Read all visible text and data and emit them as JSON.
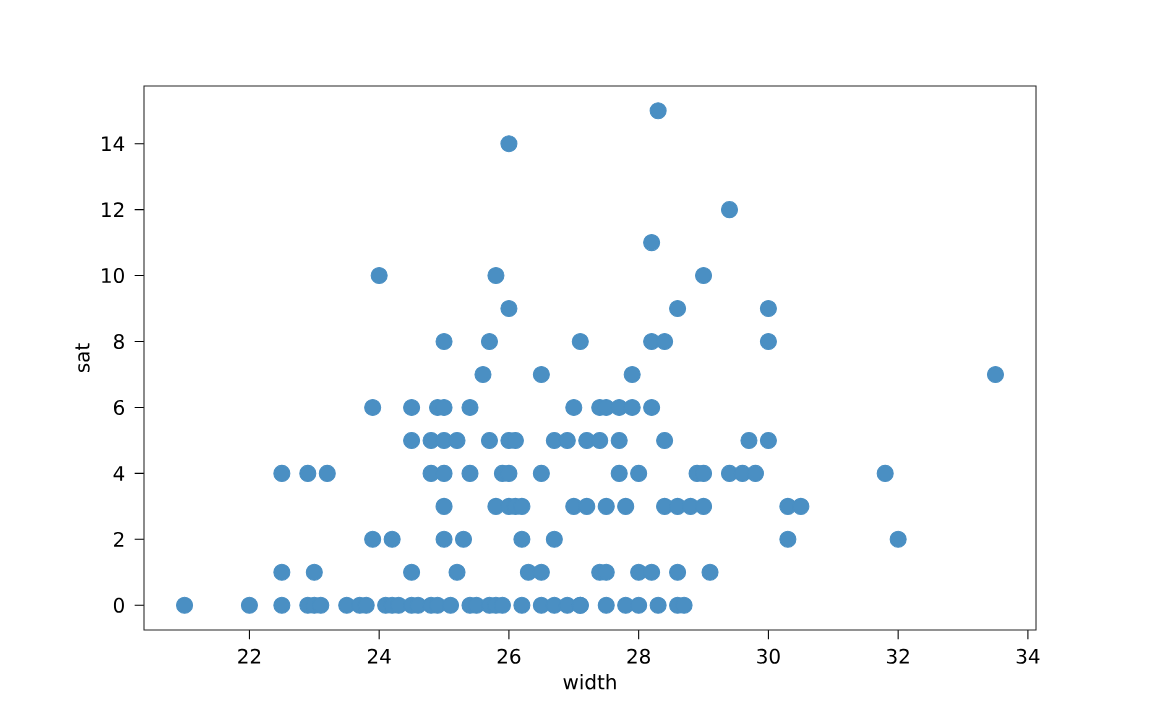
{
  "chart_data": {
    "type": "scatter",
    "xlabel": "width",
    "ylabel": "sat",
    "grid": false,
    "xlim": [
      20.375,
      34.125
    ],
    "ylim": [
      -0.75,
      15.75
    ],
    "xticks": [
      22,
      24,
      26,
      28,
      30,
      32,
      34
    ],
    "yticks": [
      0,
      2,
      4,
      6,
      8,
      10,
      12,
      14
    ],
    "series": [
      {
        "color": "#4a8fc3",
        "x": [
          21.0,
          22.0,
          22.5,
          22.9,
          23.0,
          23.1,
          23.5,
          23.7,
          23.8,
          24.1,
          24.2,
          24.3,
          24.5,
          24.6,
          24.8,
          24.9,
          25.1,
          25.4,
          25.5,
          25.7,
          25.8,
          25.9,
          26.2,
          26.5,
          26.7,
          26.9,
          27.1,
          27.1,
          27.5,
          27.8,
          28.0,
          28.3,
          28.6,
          28.7,
          22.5,
          23.0,
          24.5,
          25.2,
          26.3,
          26.5,
          27.4,
          27.5,
          28.0,
          28.2,
          28.6,
          29.1,
          23.9,
          24.2,
          25.0,
          25.3,
          26.2,
          26.7,
          30.3,
          32.0,
          25.0,
          25.8,
          26.0,
          26.1,
          26.2,
          27.0,
          27.2,
          27.5,
          27.8,
          28.4,
          28.6,
          28.8,
          29.0,
          30.3,
          30.5,
          22.5,
          22.9,
          23.2,
          24.8,
          25.0,
          25.4,
          25.9,
          26.0,
          26.5,
          27.7,
          28.0,
          28.9,
          29.0,
          29.4,
          29.6,
          29.8,
          31.8,
          24.5,
          24.8,
          25.0,
          25.2,
          25.7,
          26.0,
          26.1,
          26.7,
          26.9,
          27.2,
          27.4,
          27.7,
          28.4,
          29.7,
          30.0,
          23.9,
          24.5,
          24.9,
          25.0,
          25.4,
          27.0,
          27.4,
          27.5,
          27.7,
          27.9,
          28.2,
          25.6,
          26.5,
          27.9,
          33.5,
          25.0,
          25.7,
          27.1,
          28.2,
          28.4,
          30.0,
          26.0,
          28.6,
          30.0,
          24.0,
          25.8,
          29.0,
          28.2,
          29.4,
          26.0,
          28.3
        ],
        "values": [
          0,
          0,
          0,
          0,
          0,
          0,
          0,
          0,
          0,
          0,
          0,
          0,
          0,
          0,
          0,
          0,
          0,
          0,
          0,
          0,
          0,
          0,
          0,
          0,
          0,
          0,
          0,
          0,
          0,
          0,
          0,
          0,
          0,
          0,
          1,
          1,
          1,
          1,
          1,
          1,
          1,
          1,
          1,
          1,
          1,
          1,
          2,
          2,
          2,
          2,
          2,
          2,
          2,
          2,
          3,
          3,
          3,
          3,
          3,
          3,
          3,
          3,
          3,
          3,
          3,
          3,
          3,
          3,
          3,
          4,
          4,
          4,
          4,
          4,
          4,
          4,
          4,
          4,
          4,
          4,
          4,
          4,
          4,
          4,
          4,
          4,
          5,
          5,
          5,
          5,
          5,
          5,
          5,
          5,
          5,
          5,
          5,
          5,
          5,
          5,
          5,
          6,
          6,
          6,
          6,
          6,
          6,
          6,
          6,
          6,
          6,
          6,
          7,
          7,
          7,
          7,
          8,
          8,
          8,
          8,
          8,
          8,
          9,
          9,
          9,
          10,
          10,
          10,
          11,
          12,
          14,
          15
        ]
      }
    ]
  }
}
